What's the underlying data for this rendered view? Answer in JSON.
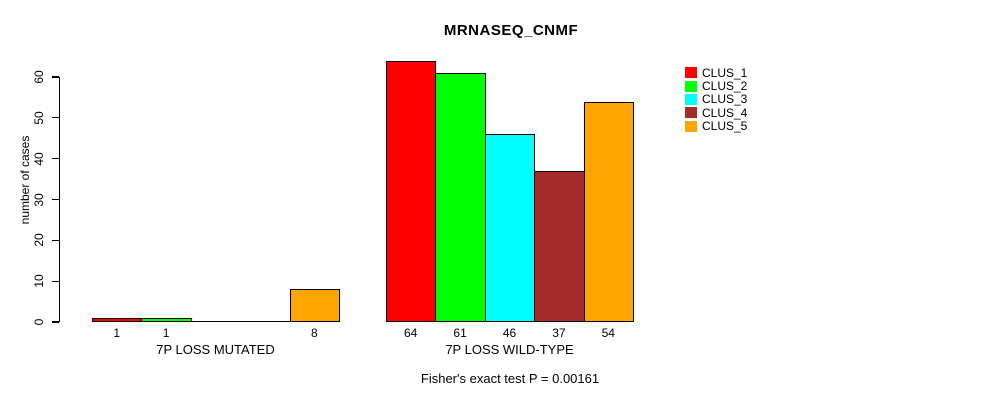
{
  "chart": {
    "title": "MRNASEQ_CNMF",
    "ylabel": "number of cases",
    "footer": "Fisher's exact test P = 0.00161"
  },
  "chart_data": {
    "type": "bar",
    "title": "MRNASEQ_CNMF",
    "ylabel": "number of cases",
    "xlabel": "",
    "annotation": "Fisher's exact test P = 0.00161",
    "categories": [
      "7P LOSS MUTATED",
      "7P LOSS WILD-TYPE"
    ],
    "series": [
      {
        "name": "CLUS_1",
        "color": "#ff0000",
        "values": [
          1,
          64
        ]
      },
      {
        "name": "CLUS_2",
        "color": "#00ff00",
        "values": [
          1,
          61
        ]
      },
      {
        "name": "CLUS_3",
        "color": "#00ffff",
        "values": [
          0,
          46
        ]
      },
      {
        "name": "CLUS_4",
        "color": "#a52a2a",
        "values": [
          0,
          37
        ]
      },
      {
        "name": "CLUS_5",
        "color": "#ffa500",
        "values": [
          8,
          54
        ]
      }
    ],
    "yticks": [
      0,
      10,
      20,
      30,
      40,
      50,
      60
    ],
    "ylim": [
      0,
      64
    ],
    "grid": false,
    "legend_position": "right",
    "value_labels": "below bars, nonzero values only"
  }
}
